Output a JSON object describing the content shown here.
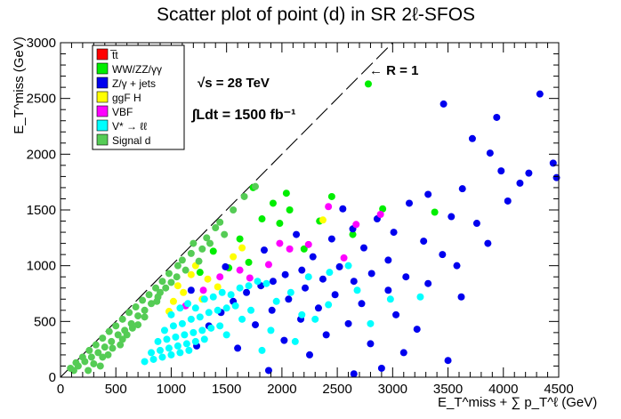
{
  "chart_data": {
    "type": "scatter",
    "title": "Scatter plot of point (d) in SR 2ℓ-SFOS",
    "xlabel": "E_T^miss + ∑ p_T^ℓ (GeV)",
    "ylabel": "E_T^miss (GeV)",
    "xlim": [
      0,
      4500
    ],
    "ylim": [
      0,
      3000
    ],
    "xticks": [
      0,
      500,
      1000,
      1500,
      2000,
      2500,
      3000,
      3500,
      4000,
      4500
    ],
    "yticks": [
      0,
      500,
      1000,
      1500,
      2000,
      2500,
      3000
    ],
    "xtick_labels": [
      "0",
      "500",
      "1000",
      "1500",
      "2000",
      "2500",
      "3000",
      "3500",
      "4000",
      "4500"
    ],
    "ytick_labels": [
      "0",
      "500",
      "1000",
      "1500",
      "2000",
      "2500",
      "3000"
    ],
    "legend_position": "top-left",
    "reference_line": {
      "label": "R = 1",
      "from": [
        0,
        0
      ],
      "to": [
        3000,
        3000
      ]
    },
    "annotations": {
      "energy": "√s = 28 TeV",
      "lumi": "∫Ldt = 1500 fb⁻¹",
      "ratio_label": "← R = 1"
    },
    "series": [
      {
        "name": "t̅t",
        "color": "#ff0000",
        "points": []
      },
      {
        "name": "WW/ZZ/γγ",
        "color": "#00ee00",
        "points": [
          [
            2780,
            2630
          ],
          [
            1740,
            1700
          ],
          [
            1820,
            1420
          ],
          [
            2040,
            1650
          ],
          [
            1920,
            1560
          ],
          [
            2340,
            1400
          ],
          [
            2640,
            1280
          ],
          [
            2910,
            1510
          ],
          [
            2200,
            1150
          ],
          [
            1620,
            1240
          ],
          [
            1520,
            980
          ],
          [
            1380,
            1130
          ],
          [
            2070,
            1500
          ],
          [
            3380,
            1480
          ],
          [
            1980,
            1380
          ],
          [
            1260,
            940
          ],
          [
            2450,
            1620
          ],
          [
            1700,
            1030
          ]
        ]
      },
      {
        "name": "Z/γ + jets",
        "color": "#0000ee",
        "points": [
          [
            4330,
            2540
          ],
          [
            3460,
            2450
          ],
          [
            3940,
            2330
          ],
          [
            3720,
            2140
          ],
          [
            3880,
            2010
          ],
          [
            4480,
            1790
          ],
          [
            4230,
            1830
          ],
          [
            3630,
            1690
          ],
          [
            3320,
            1640
          ],
          [
            4040,
            1580
          ],
          [
            3150,
            1560
          ],
          [
            3530,
            1440
          ],
          [
            2860,
            1420
          ],
          [
            3760,
            1380
          ],
          [
            2640,
            1330
          ],
          [
            3010,
            1300
          ],
          [
            3280,
            1220
          ],
          [
            2450,
            1240
          ],
          [
            3860,
            1200
          ],
          [
            2740,
            1160
          ],
          [
            3450,
            1100
          ],
          [
            2280,
            1080
          ],
          [
            2960,
            1050
          ],
          [
            3580,
            1000
          ],
          [
            2520,
            990
          ],
          [
            2180,
            960
          ],
          [
            2810,
            930
          ],
          [
            3120,
            900
          ],
          [
            2030,
            920
          ],
          [
            2370,
            880
          ],
          [
            2650,
            860
          ],
          [
            1920,
            860
          ],
          [
            3320,
            840
          ],
          [
            2210,
            800
          ],
          [
            1810,
            820
          ],
          [
            2960,
            780
          ],
          [
            2480,
            740
          ],
          [
            1680,
            760
          ],
          [
            2060,
            700
          ],
          [
            3620,
            720
          ],
          [
            2720,
            660
          ],
          [
            1560,
            680
          ],
          [
            2330,
            620
          ],
          [
            1910,
            600
          ],
          [
            3030,
            560
          ],
          [
            1450,
            580
          ],
          [
            2170,
            520
          ],
          [
            2600,
            480
          ],
          [
            1760,
            470
          ],
          [
            3220,
            430
          ],
          [
            1340,
            460
          ],
          [
            2400,
            380
          ],
          [
            2020,
            330
          ],
          [
            2800,
            300
          ],
          [
            1600,
            260
          ],
          [
            1230,
            280
          ],
          [
            2250,
            200
          ],
          [
            3500,
            150
          ],
          [
            2900,
            80
          ],
          [
            1880,
            60
          ],
          [
            2650,
            30
          ],
          [
            3100,
            220
          ],
          [
            4150,
            1740
          ],
          [
            4450,
            1920
          ],
          [
            3980,
            1850
          ],
          [
            2550,
            1510
          ],
          [
            2130,
            1280
          ],
          [
            1840,
            1140
          ],
          [
            1490,
            990
          ],
          [
            1180,
            780
          ]
        ]
      },
      {
        "name": "ggF H",
        "color": "#ffff00",
        "points": [
          [
            1220,
            1000
          ],
          [
            1110,
            760
          ],
          [
            1330,
            880
          ],
          [
            1020,
            680
          ],
          [
            1560,
            1080
          ],
          [
            980,
            590
          ],
          [
            1280,
            700
          ],
          [
            1180,
            920
          ],
          [
            2370,
            1410
          ],
          [
            1640,
            1160
          ],
          [
            1420,
            810
          ],
          [
            1060,
            820
          ]
        ]
      },
      {
        "name": "VBF",
        "color": "#ff00ff",
        "points": [
          [
            2420,
            1530
          ],
          [
            2890,
            1460
          ],
          [
            2670,
            1370
          ],
          [
            1980,
            1200
          ],
          [
            2240,
            1190
          ],
          [
            1620,
            960
          ],
          [
            1440,
            900
          ],
          [
            1290,
            780
          ],
          [
            2560,
            1070
          ],
          [
            1880,
            1010
          ],
          [
            1130,
            640
          ],
          [
            2070,
            1150
          ],
          [
            1710,
            890
          ]
        ]
      },
      {
        "name": "V* → ℓℓ",
        "color": "#00ffff",
        "points": [
          [
            1000,
            560
          ],
          [
            1080,
            620
          ],
          [
            1150,
            660
          ],
          [
            1220,
            620
          ],
          [
            1300,
            700
          ],
          [
            1380,
            720
          ],
          [
            1460,
            760
          ],
          [
            1540,
            740
          ],
          [
            1620,
            800
          ],
          [
            1700,
            820
          ],
          [
            1780,
            860
          ],
          [
            1860,
            840
          ],
          [
            940,
            420
          ],
          [
            1020,
            460
          ],
          [
            1100,
            480
          ],
          [
            1180,
            520
          ],
          [
            1260,
            540
          ],
          [
            1340,
            580
          ],
          [
            1420,
            600
          ],
          [
            1500,
            620
          ],
          [
            1580,
            640
          ],
          [
            880,
            320
          ],
          [
            960,
            340
          ],
          [
            1040,
            360
          ],
          [
            1120,
            380
          ],
          [
            1200,
            400
          ],
          [
            1280,
            420
          ],
          [
            1360,
            440
          ],
          [
            1440,
            460
          ],
          [
            820,
            220
          ],
          [
            900,
            240
          ],
          [
            980,
            260
          ],
          [
            1060,
            280
          ],
          [
            1140,
            300
          ],
          [
            1220,
            320
          ],
          [
            1300,
            340
          ],
          [
            760,
            140
          ],
          [
            840,
            160
          ],
          [
            920,
            180
          ],
          [
            1000,
            200
          ],
          [
            1080,
            220
          ],
          [
            1160,
            240
          ],
          [
            2080,
            760
          ],
          [
            2240,
            900
          ],
          [
            2430,
            940
          ],
          [
            2180,
            560
          ],
          [
            2300,
            520
          ],
          [
            2420,
            650
          ],
          [
            2680,
            780
          ],
          [
            2980,
            700
          ],
          [
            3250,
            720
          ],
          [
            2600,
            1000
          ],
          [
            1950,
            680
          ],
          [
            1720,
            600
          ],
          [
            2800,
            480
          ],
          [
            1640,
            520
          ],
          [
            1900,
            420
          ],
          [
            2120,
            320
          ],
          [
            1500,
            380
          ],
          [
            1820,
            240
          ]
        ]
      },
      {
        "name": "Signal d",
        "color": "#55cc55",
        "points": [
          [
            1760,
            1710
          ],
          [
            1660,
            1620
          ],
          [
            1560,
            1500
          ],
          [
            1400,
            1340
          ],
          [
            1320,
            1250
          ],
          [
            1180,
            1110
          ],
          [
            1060,
            1000
          ],
          [
            1440,
            1390
          ],
          [
            980,
            930
          ],
          [
            920,
            860
          ],
          [
            860,
            800
          ],
          [
            800,
            740
          ],
          [
            740,
            690
          ],
          [
            680,
            630
          ],
          [
            620,
            580
          ],
          [
            560,
            520
          ],
          [
            500,
            460
          ],
          [
            440,
            410
          ],
          [
            380,
            350
          ],
          [
            320,
            290
          ],
          [
            260,
            240
          ],
          [
            200,
            180
          ],
          [
            140,
            130
          ],
          [
            90,
            80
          ],
          [
            1050,
            900
          ],
          [
            950,
            800
          ],
          [
            880,
            720
          ],
          [
            820,
            660
          ],
          [
            760,
            600
          ],
          [
            700,
            550
          ],
          [
            640,
            480
          ],
          [
            580,
            420
          ],
          [
            520,
            380
          ],
          [
            460,
            320
          ],
          [
            400,
            270
          ],
          [
            340,
            220
          ],
          [
            280,
            180
          ],
          [
            220,
            140
          ],
          [
            160,
            100
          ],
          [
            120,
            60
          ],
          [
            1250,
            1040
          ],
          [
            1130,
            960
          ],
          [
            1000,
            850
          ],
          [
            870,
            680
          ],
          [
            760,
            540
          ],
          [
            650,
            440
          ],
          [
            560,
            340
          ],
          [
            470,
            260
          ],
          [
            380,
            180
          ],
          [
            300,
            120
          ],
          [
            250,
            60
          ],
          [
            1350,
            1200
          ],
          [
            1480,
            1280
          ],
          [
            1200,
            1200
          ],
          [
            900,
            760
          ],
          [
            700,
            470
          ],
          [
            600,
            380
          ],
          [
            540,
            290
          ],
          [
            430,
            200
          ],
          [
            360,
            100
          ],
          [
            1100,
            1050
          ],
          [
            1280,
            1150
          ]
        ]
      }
    ]
  }
}
